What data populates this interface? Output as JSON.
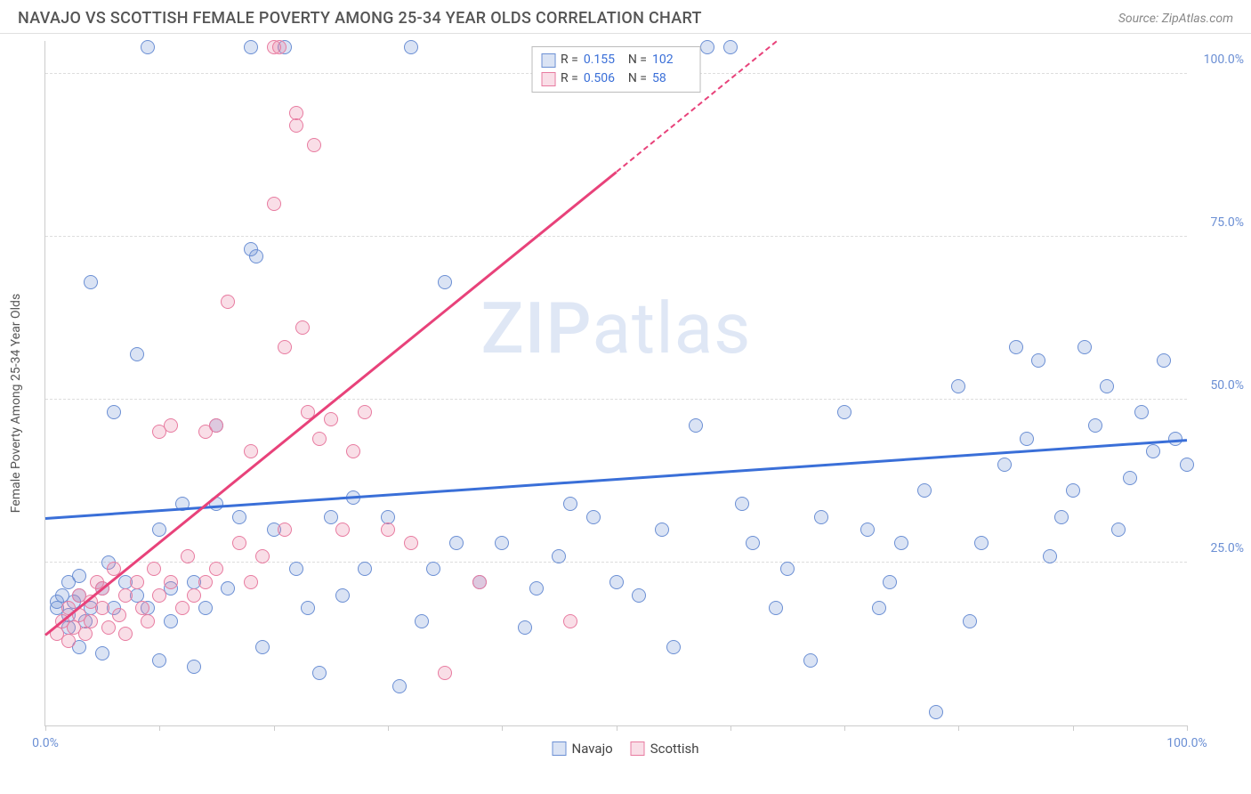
{
  "header": {
    "title": "NAVAJO VS SCOTTISH FEMALE POVERTY AMONG 25-34 YEAR OLDS CORRELATION CHART",
    "source_prefix": "Source: ",
    "source": "ZipAtlas.com"
  },
  "chart": {
    "type": "scatter",
    "yaxis_title": "Female Poverty Among 25-34 Year Olds",
    "xlim": [
      0,
      100
    ],
    "ylim": [
      0,
      105
    ],
    "xticks": [
      0,
      10,
      20,
      30,
      40,
      50,
      60,
      70,
      80,
      90,
      100
    ],
    "xtick_labels": {
      "0": "0.0%",
      "100": "100.0%"
    },
    "yticks": [
      25,
      50,
      75,
      100
    ],
    "ytick_labels": {
      "25": "25.0%",
      "50": "50.0%",
      "75": "75.0%",
      "100": "100.0%"
    },
    "grid_color": "#dddddd",
    "axis_color": "#cccccc",
    "background_color": "#ffffff",
    "tick_label_color": "#6b8fd4",
    "marker_radius": 8,
    "marker_border_width": 1.5,
    "marker_fill_opacity": 0.25,
    "watermark": "ZIPatlas",
    "series": [
      {
        "name": "Navajo",
        "color": "#6b8fd4",
        "fill": "rgba(107,143,212,0.25)",
        "r": 0.155,
        "n": 102,
        "trend": {
          "x1": 0,
          "y1": 32,
          "x2": 100,
          "y2": 44,
          "width": 3,
          "color": "#3a6fd8"
        },
        "points": [
          [
            1,
            18
          ],
          [
            1,
            19
          ],
          [
            1.5,
            20
          ],
          [
            2,
            15
          ],
          [
            2,
            22
          ],
          [
            2,
            17
          ],
          [
            2.5,
            19
          ],
          [
            3,
            12
          ],
          [
            3,
            20
          ],
          [
            3,
            23
          ],
          [
            3.5,
            16
          ],
          [
            4,
            18
          ],
          [
            4,
            68
          ],
          [
            5,
            21
          ],
          [
            5,
            11
          ],
          [
            5.5,
            25
          ],
          [
            6,
            18
          ],
          [
            6,
            48
          ],
          [
            7,
            22
          ],
          [
            8,
            57
          ],
          [
            8,
            20
          ],
          [
            9,
            18
          ],
          [
            9,
            104
          ],
          [
            10,
            10
          ],
          [
            10,
            30
          ],
          [
            11,
            16
          ],
          [
            11,
            21
          ],
          [
            12,
            34
          ],
          [
            13,
            9
          ],
          [
            13,
            22
          ],
          [
            14,
            18
          ],
          [
            15,
            34
          ],
          [
            15,
            46
          ],
          [
            16,
            21
          ],
          [
            17,
            32
          ],
          [
            18,
            104
          ],
          [
            18,
            73
          ],
          [
            18.5,
            72
          ],
          [
            19,
            12
          ],
          [
            20,
            30
          ],
          [
            21,
            104
          ],
          [
            22,
            24
          ],
          [
            23,
            18
          ],
          [
            24,
            8
          ],
          [
            25,
            32
          ],
          [
            26,
            20
          ],
          [
            27,
            35
          ],
          [
            28,
            24
          ],
          [
            30,
            32
          ],
          [
            31,
            6
          ],
          [
            32,
            104
          ],
          [
            33,
            16
          ],
          [
            34,
            24
          ],
          [
            35,
            68
          ],
          [
            36,
            28
          ],
          [
            38,
            22
          ],
          [
            40,
            28
          ],
          [
            42,
            15
          ],
          [
            43,
            21
          ],
          [
            45,
            26
          ],
          [
            46,
            34
          ],
          [
            48,
            32
          ],
          [
            50,
            22
          ],
          [
            52,
            20
          ],
          [
            54,
            30
          ],
          [
            55,
            12
          ],
          [
            57,
            46
          ],
          [
            58,
            104
          ],
          [
            60,
            104
          ],
          [
            61,
            34
          ],
          [
            62,
            28
          ],
          [
            64,
            18
          ],
          [
            65,
            24
          ],
          [
            67,
            10
          ],
          [
            68,
            32
          ],
          [
            70,
            48
          ],
          [
            72,
            30
          ],
          [
            73,
            18
          ],
          [
            74,
            22
          ],
          [
            75,
            28
          ],
          [
            77,
            36
          ],
          [
            78,
            2
          ],
          [
            80,
            52
          ],
          [
            81,
            16
          ],
          [
            82,
            28
          ],
          [
            84,
            40
          ],
          [
            85,
            58
          ],
          [
            86,
            44
          ],
          [
            87,
            56
          ],
          [
            88,
            26
          ],
          [
            89,
            32
          ],
          [
            90,
            36
          ],
          [
            91,
            58
          ],
          [
            92,
            46
          ],
          [
            93,
            52
          ],
          [
            94,
            30
          ],
          [
            95,
            38
          ],
          [
            96,
            48
          ],
          [
            97,
            42
          ],
          [
            98,
            56
          ],
          [
            99,
            44
          ],
          [
            100,
            40
          ]
        ]
      },
      {
        "name": "Scottish",
        "color": "#e87ba0",
        "fill": "rgba(232,123,160,0.25)",
        "r": 0.506,
        "n": 58,
        "trend_solid": {
          "x1": 0,
          "y1": 14,
          "x2": 50,
          "y2": 85,
          "width": 3,
          "color": "#e8427a"
        },
        "trend_dashed": {
          "x1": 50,
          "y1": 85,
          "x2": 64,
          "y2": 105,
          "width": 2,
          "color": "#e8427a"
        },
        "points": [
          [
            1,
            14
          ],
          [
            1.5,
            16
          ],
          [
            2,
            13
          ],
          [
            2,
            18
          ],
          [
            2.5,
            15
          ],
          [
            3,
            17
          ],
          [
            3,
            20
          ],
          [
            3.5,
            14
          ],
          [
            4,
            19
          ],
          [
            4,
            16
          ],
          [
            4.5,
            22
          ],
          [
            5,
            18
          ],
          [
            5,
            21
          ],
          [
            5.5,
            15
          ],
          [
            6,
            24
          ],
          [
            6.5,
            17
          ],
          [
            7,
            14
          ],
          [
            7,
            20
          ],
          [
            8,
            22
          ],
          [
            8.5,
            18
          ],
          [
            9,
            16
          ],
          [
            9.5,
            24
          ],
          [
            10,
            45
          ],
          [
            10,
            20
          ],
          [
            11,
            22
          ],
          [
            11,
            46
          ],
          [
            12,
            18
          ],
          [
            12.5,
            26
          ],
          [
            13,
            20
          ],
          [
            14,
            45
          ],
          [
            14,
            22
          ],
          [
            15,
            24
          ],
          [
            15,
            46
          ],
          [
            16,
            65
          ],
          [
            17,
            28
          ],
          [
            18,
            22
          ],
          [
            18,
            42
          ],
          [
            19,
            26
          ],
          [
            20,
            104
          ],
          [
            20,
            80
          ],
          [
            20.5,
            104
          ],
          [
            21,
            58
          ],
          [
            21,
            30
          ],
          [
            22,
            94
          ],
          [
            22,
            92
          ],
          [
            22.5,
            61
          ],
          [
            23,
            48
          ],
          [
            23.5,
            89
          ],
          [
            24,
            44
          ],
          [
            25,
            47
          ],
          [
            26,
            30
          ],
          [
            27,
            42
          ],
          [
            28,
            48
          ],
          [
            30,
            30
          ],
          [
            32,
            28
          ],
          [
            35,
            8
          ],
          [
            38,
            22
          ],
          [
            46,
            16
          ]
        ]
      }
    ],
    "legend_top": {
      "r_label": "R =",
      "n_label": "N ="
    },
    "legend_bottom": {
      "items": [
        "Navajo",
        "Scottish"
      ]
    }
  }
}
